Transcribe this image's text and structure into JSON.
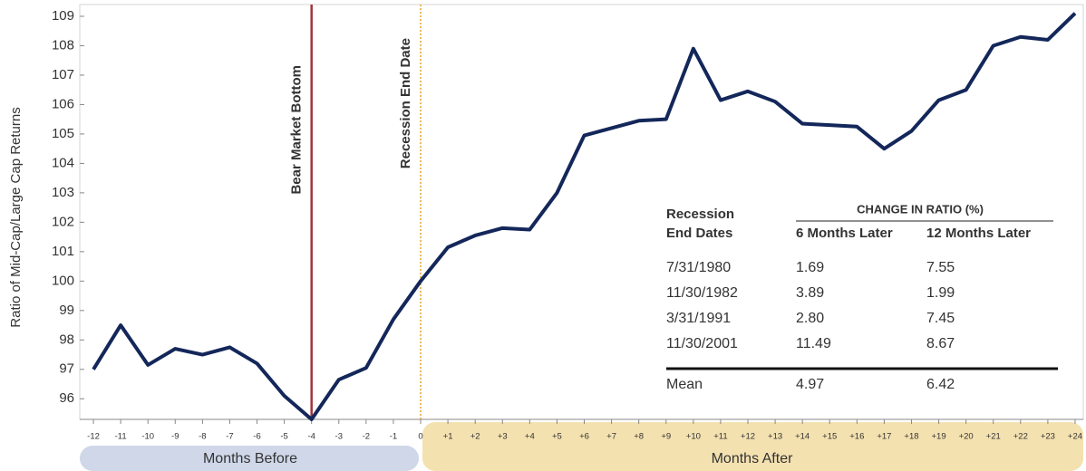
{
  "chart_data": {
    "type": "line",
    "ylabel": "Ratio of Mid-Cap/Large Cap Returns",
    "x": [
      -12,
      -11,
      -10,
      -9,
      -8,
      -7,
      -6,
      -5,
      -4,
      -3,
      -2,
      -1,
      0,
      1,
      2,
      3,
      4,
      5,
      6,
      7,
      8,
      9,
      10,
      11,
      12,
      13,
      14,
      15,
      16,
      17,
      18,
      19,
      20,
      21,
      22,
      23,
      24
    ],
    "values": [
      97.0,
      98.5,
      97.15,
      97.7,
      97.5,
      97.75,
      97.2,
      96.1,
      95.3,
      96.65,
      97.05,
      98.7,
      100.0,
      101.15,
      101.55,
      101.8,
      101.75,
      103.0,
      104.95,
      105.2,
      105.45,
      105.5,
      107.9,
      106.15,
      106.45,
      106.1,
      105.35,
      105.3,
      105.25,
      104.5,
      105.1,
      106.15,
      106.5,
      108.0,
      108.3,
      108.2,
      109.1
    ],
    "color": "#14275a",
    "xlim": [
      -12.5,
      24.3
    ],
    "ylim": [
      95.3,
      109.4
    ],
    "xticks": [
      -12,
      -11,
      -10,
      -9,
      -8,
      -7,
      -6,
      -5,
      -4,
      -3,
      -2,
      -1,
      0,
      {
        "value": 1,
        "label": "+1"
      },
      {
        "value": 2,
        "label": "+2"
      },
      {
        "value": 3,
        "label": "+3"
      },
      {
        "value": 4,
        "label": "+4"
      },
      {
        "value": 5,
        "label": "+5"
      },
      {
        "value": 6,
        "label": "+6"
      },
      {
        "value": 7,
        "label": "+7"
      },
      {
        "value": 8,
        "label": "+8"
      },
      {
        "value": 9,
        "label": "+9"
      },
      {
        "value": 10,
        "label": "+10"
      },
      {
        "value": 11,
        "label": "+11"
      },
      {
        "value": 12,
        "label": "+12"
      },
      {
        "value": 13,
        "label": "+13"
      },
      {
        "value": 14,
        "label": "+14"
      },
      {
        "value": 15,
        "label": "+15"
      },
      {
        "value": 16,
        "label": "+16"
      },
      {
        "value": 17,
        "label": "+17"
      },
      {
        "value": 18,
        "label": "+18"
      },
      {
        "value": 19,
        "label": "+19"
      },
      {
        "value": 20,
        "label": "+20"
      },
      {
        "value": 21,
        "label": "+21"
      },
      {
        "value": 22,
        "label": "+22"
      },
      {
        "value": 23,
        "label": "+23"
      },
      {
        "value": 24,
        "label": "+24"
      }
    ],
    "yticks": [
      96,
      97,
      98,
      99,
      100,
      101,
      102,
      103,
      104,
      105,
      106,
      107,
      108,
      109
    ],
    "annotations": [
      {
        "text": "Bear Market Bottom",
        "x": -4,
        "color": "#a3353b"
      },
      {
        "text": "Recession End Date",
        "x": 0,
        "color": "#e3a62a"
      }
    ],
    "bands": [
      {
        "label": "Months Before",
        "color": "#cfd7e8"
      },
      {
        "label": "Months After",
        "color": "#f4e1b0"
      }
    ]
  },
  "table": {
    "header": [
      "Recession",
      "End Dates"
    ],
    "group": "CHANGE IN RATIO (%)",
    "columns": [
      "6 Months Later",
      "12 Months Later"
    ],
    "rows": [
      [
        "7/31/1980",
        "1.69",
        "7.55"
      ],
      [
        "11/30/1982",
        "3.89",
        "1.99"
      ],
      [
        "3/31/1991",
        "2.80",
        "7.45"
      ],
      [
        "11/30/2001",
        "11.49",
        "8.67"
      ]
    ],
    "mean": [
      "Mean",
      "4.97",
      "6.42"
    ]
  }
}
